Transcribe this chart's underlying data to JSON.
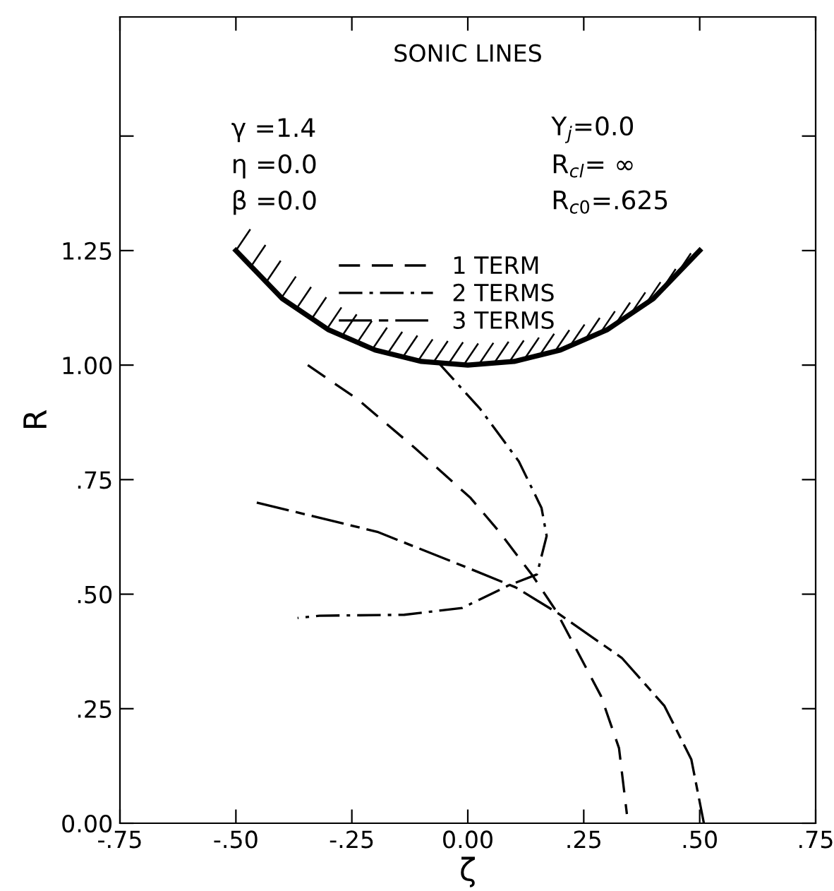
{
  "chart_data": {
    "type": "line",
    "title": "SONIC LINES",
    "xlabel": "ζ",
    "ylabel": "R",
    "annotations": [
      "γ =1.4",
      "η =0.0",
      "β =0.0",
      "Y$_{j}$=0.0",
      "R$_{cl}$= ∞",
      "R$_{c0}$=.625"
    ],
    "series": [
      {
        "color": "#000000",
        "line_style": "solid",
        "x": [
          -0.5,
          -0.4,
          -0.3,
          -0.2,
          -0.1,
          0.0,
          0.1,
          0.2,
          0.3,
          0.4,
          0.5
        ],
        "values": [
          1.25,
          1.145,
          1.077,
          1.033,
          1.008,
          1.0,
          1.008,
          1.033,
          1.077,
          1.145,
          1.25
        ]
      },
      {
        "name": "1 TERM",
        "color": "#000000",
        "line_style": "dashed",
        "x": [
          -0.345,
          -0.237,
          -0.115,
          0.006,
          0.068,
          0.14,
          0.19,
          0.287,
          0.326,
          0.343
        ],
        "values": [
          1.0,
          0.925,
          0.82,
          0.71,
          0.636,
          0.54,
          0.464,
          0.278,
          0.164,
          0.02
        ]
      },
      {
        "name": "2 TERMS",
        "color": "#000000",
        "line_style": "dashdot",
        "x": [
          -0.064,
          0.027,
          0.11,
          0.159,
          0.17,
          0.149,
          0.09,
          -0.012,
          -0.137,
          -0.32,
          -0.367
        ],
        "values": [
          1.006,
          0.904,
          0.79,
          0.688,
          0.627,
          0.543,
          0.52,
          0.47,
          0.455,
          0.453,
          0.448
        ]
      },
      {
        "name": "3 TERMS",
        "color": "#000000",
        "line_style": "longdash",
        "x": [
          -0.455,
          -0.195,
          0.006,
          0.103,
          0.195,
          0.332,
          0.424,
          0.482,
          0.509
        ],
        "values": [
          0.7,
          0.636,
          0.555,
          0.515,
          0.458,
          0.361,
          0.256,
          0.139,
          0.0
        ]
      }
    ],
    "xlim": [
      -0.75,
      0.75
    ],
    "ylim": [
      0,
      1.76
    ],
    "xticks": [
      {
        "value": -0.75,
        "label": "-.75"
      },
      {
        "value": -0.5,
        "label": "-.50"
      },
      {
        "value": -0.25,
        "label": "-.25"
      },
      {
        "value": 0,
        "label": "0.00"
      },
      {
        "value": 0.25,
        "label": ".25"
      },
      {
        "value": 0.5,
        "label": ".50"
      },
      {
        "value": 0.75,
        "label": ".75"
      }
    ],
    "yticks": [
      {
        "value": 0,
        "label": "0.00"
      },
      {
        "value": 0.25,
        "label": ".25"
      },
      {
        "value": 0.5,
        "label": ".50"
      },
      {
        "value": 0.75,
        "label": ".75"
      },
      {
        "value": 1.0,
        "label": "1.00"
      },
      {
        "value": 1.25,
        "label": "1.25"
      },
      {
        "value": 1.5,
        "label": null
      }
    ],
    "grid": false,
    "legend": "top",
    "marker": "none"
  }
}
